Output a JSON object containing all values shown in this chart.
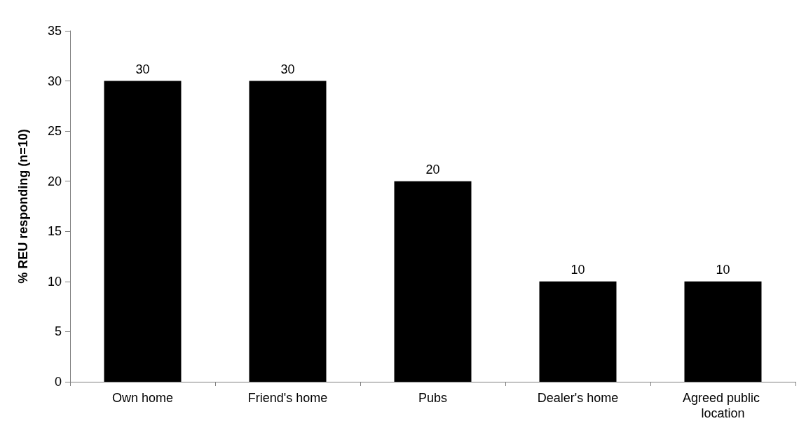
{
  "chart_data": {
    "type": "bar",
    "ylabel": "% REU responding (n=10)",
    "categories": [
      "Own home",
      "Friend's home",
      "Pubs",
      "Dealer's home",
      "Agreed public location"
    ],
    "values": [
      30,
      30,
      20,
      10,
      10
    ],
    "color": "#000000",
    "ylim": [
      0,
      35
    ],
    "yticks": [
      0,
      5,
      10,
      15,
      20,
      25,
      30,
      35
    ],
    "grid": false,
    "data_labels": true
  }
}
